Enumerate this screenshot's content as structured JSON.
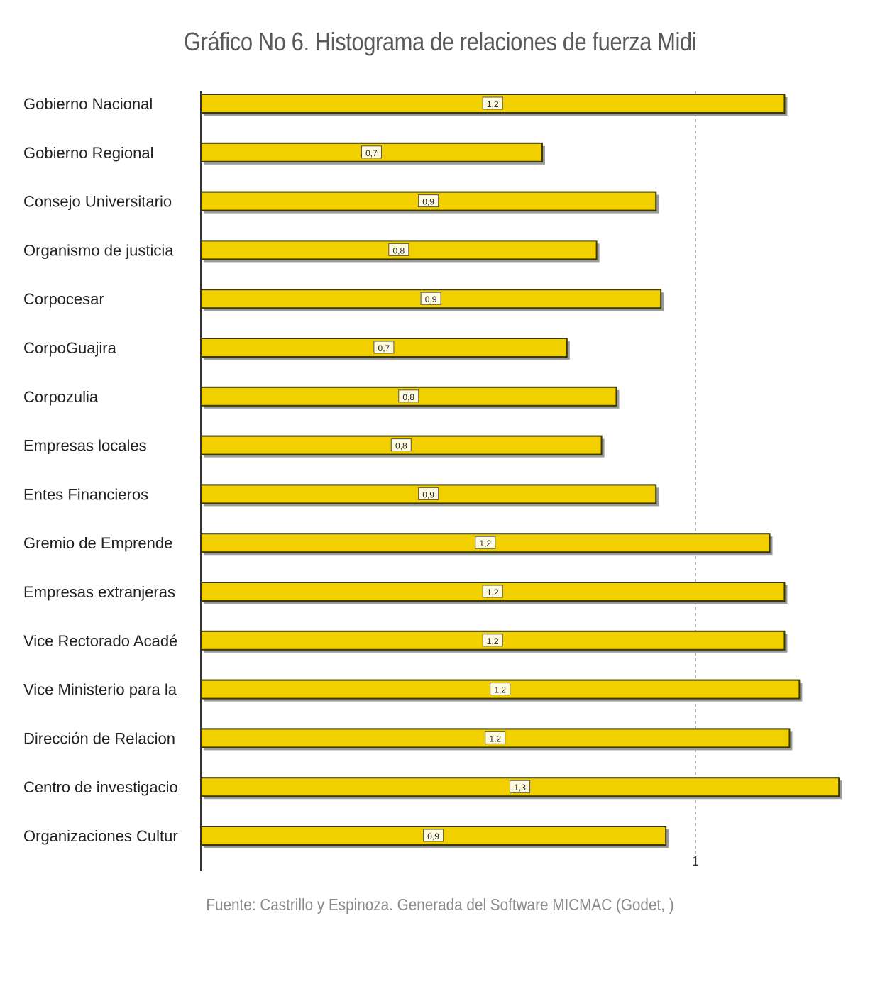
{
  "title": "Gráfico No 6. Histograma de relaciones de fuerza Midi",
  "source": "Fuente: Castrillo y Espinoza. Generada del Software MICMAC (Godet, )",
  "colors": {
    "bar_fill": "#f2d000",
    "bar_border": "#3a3a00",
    "grid": "#9a9a9a",
    "axis": "#333333"
  },
  "chart_data": {
    "type": "bar",
    "orientation": "horizontal",
    "categories": [
      "Gobierno Nacional",
      "Gobierno Regional",
      "Consejo Universitario",
      "Organismo de justicia",
      "Corpocesar",
      "CorpoGuajira",
      "Corpozulia",
      "Empresas locales",
      "Entes Financieros",
      "Gremio de Emprende",
      "Empresas extranjeras",
      "Vice Rectorado Acadé",
      "Vice Ministerio para la",
      "Dirección de Relacion",
      "Centro de investigacio",
      "Organizaciones Cultur"
    ],
    "values": [
      1.18,
      0.69,
      0.92,
      0.8,
      0.93,
      0.74,
      0.84,
      0.81,
      0.92,
      1.15,
      1.18,
      1.18,
      1.21,
      1.19,
      1.29,
      0.94
    ],
    "data_labels": [
      "1,2",
      "0,7",
      "0,9",
      "0,8",
      "0,9",
      "0,7",
      "0,8",
      "0,8",
      "0,9",
      "1,2",
      "1,2",
      "1,2",
      "1,2",
      "1,2",
      "1,3",
      "0,9"
    ],
    "x_ticks": [
      {
        "value": 1,
        "label": "1"
      }
    ],
    "xlim": [
      0,
      1.3
    ],
    "grid": "vertical dashed at 1",
    "legend": "none"
  }
}
